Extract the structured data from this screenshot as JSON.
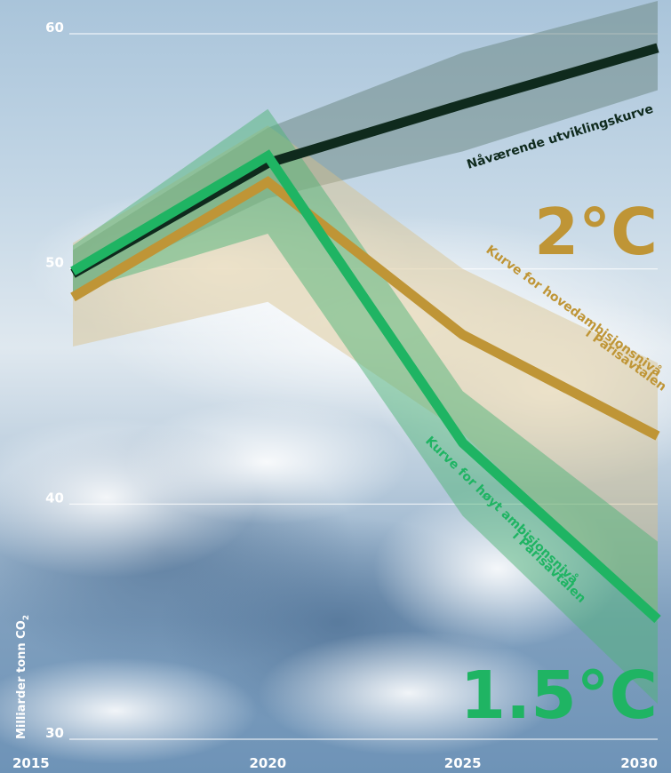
{
  "chart_data": {
    "type": "line",
    "x": [
      2015,
      2020,
      2025,
      2030
    ],
    "xticks": [
      "2015",
      "2020",
      "2025",
      "2030"
    ],
    "yticks": [
      "30",
      "40",
      "50",
      "60"
    ],
    "ylabel": "Milliarder tonn CO",
    "ylabel_sub": "2",
    "ylim": [
      30,
      61
    ],
    "xlim": [
      2015,
      2030
    ],
    "grid": true,
    "series": [
      {
        "name": "Nåværende utviklingskurve",
        "color": "#0f2a1d",
        "band_color": "#6f8a86",
        "values": [
          49.8,
          54.5,
          57.0,
          59.4
        ],
        "band_low": [
          49.0,
          53.0,
          55.0,
          57.6
        ],
        "band_high": [
          50.8,
          56.0,
          59.2,
          61.4
        ]
      },
      {
        "name": "Kurve for hovedambisjonsnivå i Parisavtalen",
        "label_lines": [
          "Kurve for hovedambisjonsnivå",
          "i Parisavtalen"
        ],
        "color": "#bf9536",
        "band_color": "#d9c08a",
        "values": [
          48.8,
          53.7,
          47.2,
          42.9
        ],
        "band_low": [
          46.7,
          48.6,
          43.0,
          35.0
        ],
        "band_high": [
          51.1,
          56.1,
          50.0,
          46.0
        ],
        "end_label": "2°C"
      },
      {
        "name": "Kurve for høyt ambisjonsnivå i Parisavtalen",
        "label_lines": [
          "Kurve for høyt ambisjonsnivå",
          "i Parisavtalen"
        ],
        "color": "#1fb463",
        "band_color": "#4fb377",
        "values": [
          49.9,
          54.8,
          42.6,
          35.1
        ],
        "band_low": [
          49.0,
          51.5,
          39.5,
          31.5
        ],
        "band_high": [
          51.0,
          56.8,
          44.8,
          38.4
        ],
        "end_label": "1.5°C"
      }
    ]
  }
}
